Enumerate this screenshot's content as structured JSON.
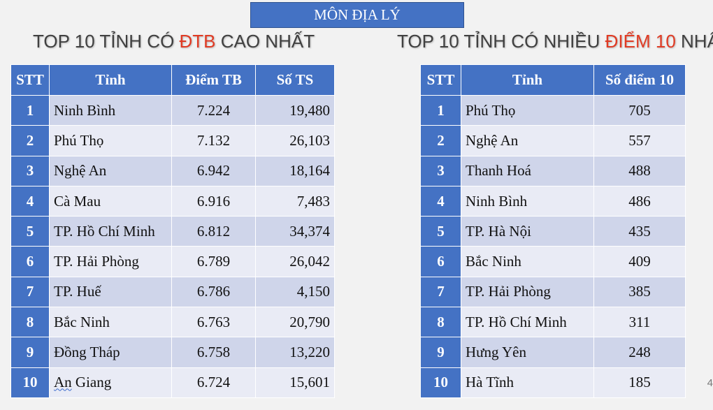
{
  "subject_banner": "MÔN ĐỊA LÝ",
  "left_heading": {
    "pre": "TOP 10 TỈNH CÓ ",
    "highlight": "ĐTB",
    "post": " CAO NHẤT"
  },
  "right_heading": {
    "pre": "TOP 10 TỈNH CÓ NHIỀU ",
    "highlight": "ĐIỂM 10",
    "post": " NHẤT"
  },
  "colors": {
    "header_blue": "#4472c4",
    "row_dark": "#cfd5ea",
    "row_light": "#e9ebf5",
    "highlight_red": "#e03b24"
  },
  "left_table": {
    "headers": [
      "STT",
      "Tỉnh",
      "Điểm TB",
      "Số TS"
    ],
    "rows": [
      {
        "stt": "1",
        "province": "Ninh Bình",
        "avg": "7.224",
        "count": "19,480"
      },
      {
        "stt": "2",
        "province": "Phú Thọ",
        "avg": "7.132",
        "count": "26,103"
      },
      {
        "stt": "3",
        "province": "Nghệ An",
        "avg": "6.942",
        "count": "18,164"
      },
      {
        "stt": "4",
        "province": "Cà Mau",
        "avg": "6.916",
        "count": "7,483"
      },
      {
        "stt": "5",
        "province": "TP. Hồ Chí Minh",
        "avg": "6.812",
        "count": "34,374"
      },
      {
        "stt": "6",
        "province": "TP. Hải Phòng",
        "avg": "6.789",
        "count": "26,042"
      },
      {
        "stt": "7",
        "province": "TP. Huế",
        "avg": "6.786",
        "count": "4,150"
      },
      {
        "stt": "8",
        "province": "Bắc Ninh",
        "avg": "6.763",
        "count": "20,790"
      },
      {
        "stt": "9",
        "province": "Đồng Tháp",
        "avg": "6.758",
        "count": "13,220"
      },
      {
        "stt": "10",
        "province_a": "An",
        "province_b": " Giang",
        "avg": "6.724",
        "count": "15,601"
      }
    ]
  },
  "right_table": {
    "headers": [
      "STT",
      "Tỉnh",
      "Số điểm 10"
    ],
    "rows": [
      {
        "stt": "1",
        "province": "Phú Thọ",
        "tens": "705"
      },
      {
        "stt": "2",
        "province": "Nghệ An",
        "tens": "557"
      },
      {
        "stt": "3",
        "province": "Thanh Hoá",
        "tens": "488"
      },
      {
        "stt": "4",
        "province": "Ninh Bình",
        "tens": "486"
      },
      {
        "stt": "5",
        "province": "TP. Hà Nội",
        "tens": "435"
      },
      {
        "stt": "6",
        "province": "Bắc Ninh",
        "tens": "409"
      },
      {
        "stt": "7",
        "province": "TP. Hải Phòng",
        "tens": "385"
      },
      {
        "stt": "8",
        "province": "TP. Hồ Chí Minh",
        "tens": "311"
      },
      {
        "stt": "9",
        "province": "Hưng Yên",
        "tens": "248"
      },
      {
        "stt": "10",
        "province": "Hà Tĩnh",
        "tens": "185"
      }
    ]
  },
  "page_number": "4"
}
